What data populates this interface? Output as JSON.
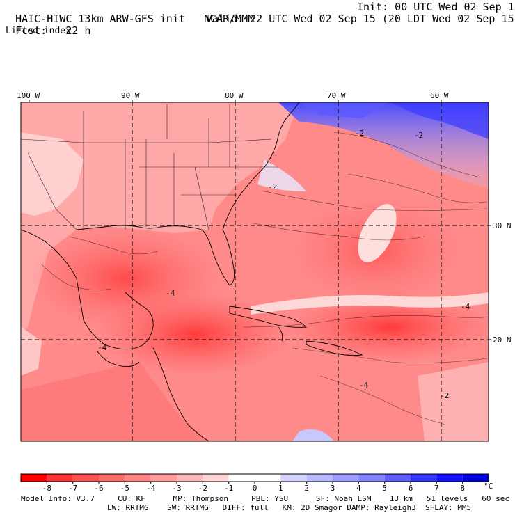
{
  "header": {
    "model_title": "HAIC-HIWC 13km ARW-GFS init",
    "org": "NCAR/MMM",
    "init": "Init: 00 UTC Wed 02 Sep 15",
    "fcst_label": "Fcst:",
    "fcst_value": "22 h",
    "valid": "Valid: 22 UTC Wed 02 Sep 15 (20 LDT Wed 02 Sep 15)",
    "field": "Lifted index"
  },
  "map": {
    "lon_labels": [
      "100 W",
      "90 W",
      "80 W",
      "70 W",
      "60 W"
    ],
    "lat_labels": [
      "30 N",
      "20 N"
    ],
    "contour_labels": [
      "-2",
      "-2",
      "-2",
      "-4",
      "-4",
      "-4",
      "-4",
      "-2"
    ]
  },
  "colorbar": {
    "ticks": [
      "-8",
      "-7",
      "-6",
      "-5",
      "-4",
      "-3",
      "-2",
      "-1",
      "0",
      "1",
      "2",
      "3",
      "4",
      "5",
      "6",
      "7",
      "8"
    ],
    "unit": "°C",
    "colors": [
      "#ff0000",
      "#ff3333",
      "#ff5151",
      "#ff6b6b",
      "#ff8484",
      "#ff9d9d",
      "#ffb8b8",
      "#ffd4d4",
      "#ffffff",
      "#ffffff",
      "#d4d4ff",
      "#b8b8ff",
      "#9d9dff",
      "#8484ff",
      "#5e5eff",
      "#3333ff",
      "#1010ff",
      "#0000dd"
    ]
  },
  "footer": {
    "line1": "Model Info: V3.7     CU: KF      MP: Thompson     PBL: YSU      SF: Noah LSM    13 km   51 levels   60 sec",
    "line2": "LW: RRTMG    SW: RRTMG   DIFF: full   KM: 2D Smagor DAMP: Rayleigh3  SFLAY: MM5"
  }
}
